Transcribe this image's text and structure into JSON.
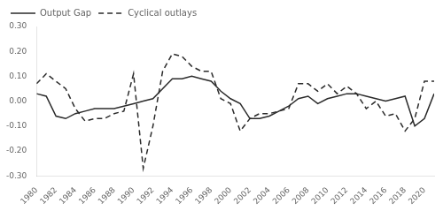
{
  "chart_data": {
    "type": "line",
    "x": [
      1980,
      1981,
      1982,
      1983,
      1984,
      1985,
      1986,
      1987,
      1988,
      1989,
      1990,
      1991,
      1992,
      1993,
      1994,
      1995,
      1996,
      1997,
      1998,
      1999,
      2000,
      2001,
      2002,
      2003,
      2004,
      2005,
      2006,
      2007,
      2008,
      2009,
      2010,
      2011,
      2012,
      2013,
      2014,
      2015,
      2016,
      2017,
      2018,
      2019,
      2020,
      2021
    ],
    "series": [
      {
        "name": "Output Gap",
        "color": "#2b2b2b",
        "line_style": "solid",
        "values": [
          0.03,
          0.02,
          -0.06,
          -0.07,
          -0.05,
          -0.04,
          -0.03,
          -0.03,
          -0.03,
          -0.02,
          -0.01,
          0.0,
          0.01,
          0.05,
          0.09,
          0.09,
          0.1,
          0.09,
          0.08,
          0.04,
          0.01,
          -0.01,
          -0.07,
          -0.07,
          -0.06,
          -0.04,
          -0.02,
          0.01,
          0.02,
          -0.01,
          0.01,
          0.02,
          0.03,
          0.03,
          0.02,
          0.01,
          0.0,
          0.01,
          0.02,
          -0.1,
          -0.07,
          0.03
        ]
      },
      {
        "name": "Cyclical outlays",
        "color": "#2b2b2b",
        "line_style": "dashed",
        "values": [
          0.07,
          0.11,
          0.08,
          0.05,
          -0.03,
          -0.08,
          -0.07,
          -0.07,
          -0.05,
          -0.04,
          0.11,
          -0.27,
          -0.1,
          0.12,
          0.19,
          0.18,
          0.14,
          0.12,
          0.12,
          0.01,
          -0.01,
          -0.12,
          -0.07,
          -0.05,
          -0.05,
          -0.04,
          -0.03,
          0.07,
          0.07,
          0.04,
          0.07,
          0.03,
          0.06,
          0.03,
          -0.03,
          0.0,
          -0.06,
          -0.05,
          -0.12,
          -0.07,
          0.08,
          0.08
        ]
      }
    ],
    "xlim": [
      1980,
      2021
    ],
    "ylim": [
      -0.3,
      0.3
    ],
    "xticks": [
      1980,
      1982,
      1984,
      1986,
      1988,
      1990,
      1992,
      1994,
      1996,
      1998,
      2000,
      2002,
      2004,
      2006,
      2008,
      2010,
      2012,
      2014,
      2016,
      2018,
      2020
    ],
    "yticks": [
      {
        "value": -0.3,
        "label": "-0.30"
      },
      {
        "value": -0.2,
        "label": "-0.20"
      },
      {
        "value": -0.1,
        "label": "-0.10"
      },
      {
        "value": 0.0,
        "label": "0.00"
      },
      {
        "value": 0.1,
        "label": "0.10"
      },
      {
        "value": 0.2,
        "label": "0.20"
      },
      {
        "value": 0.3,
        "label": "0.30"
      }
    ],
    "grid": false,
    "legend": "upper left"
  }
}
